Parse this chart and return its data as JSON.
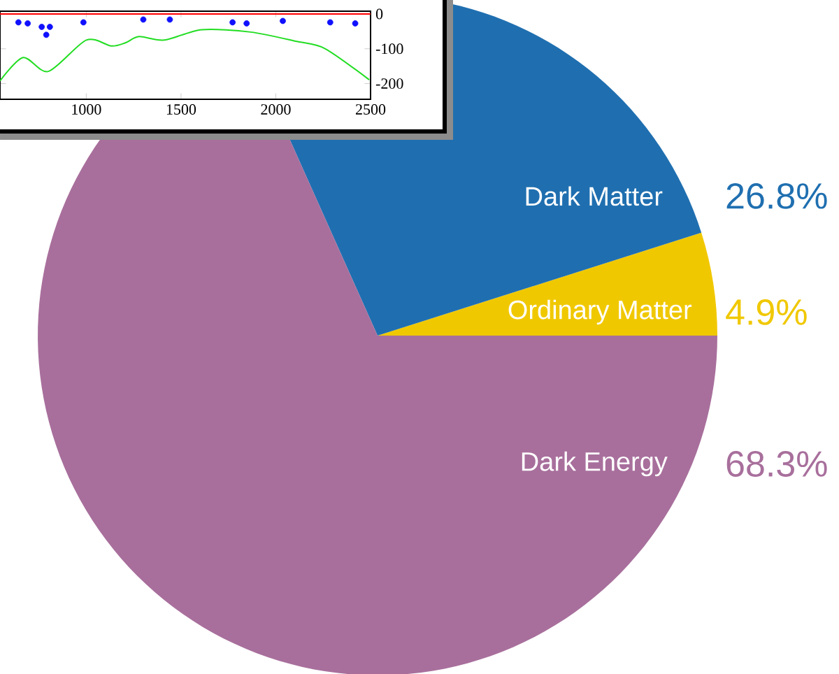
{
  "chart_data": [
    {
      "type": "pie",
      "categories": [
        "Ordinary Matter",
        "Dark Matter",
        "Dark Energy"
      ],
      "values": [
        4.9,
        26.8,
        68.3
      ],
      "colors": [
        "#f0c800",
        "#1f6fb0",
        "#a86f9c"
      ],
      "value_labels": [
        "4.9%",
        "26.8%",
        "68.3%"
      ]
    },
    {
      "type": "line",
      "xlim": [
        545,
        2500
      ],
      "ylim": [
        -245,
        8
      ],
      "xticks": [
        1000,
        1500,
        2000,
        2500
      ],
      "yticks": [
        0,
        -100,
        -200
      ],
      "ref_lines": [
        {
          "axis": "y",
          "value": 0,
          "color": "#ff0000"
        }
      ],
      "series": [
        {
          "type": "scatter",
          "color": "#1010ff",
          "x": [
            642,
            691,
            765,
            789,
            808,
            985,
            1301,
            1441,
            1772,
            1846,
            2037,
            2287,
            2419
          ],
          "values": [
            -24,
            -27,
            -37,
            -60,
            -37,
            -24,
            -16,
            -16,
            -24,
            -27,
            -20,
            -24,
            -27
          ]
        },
        {
          "type": "line",
          "color": "#22dd22",
          "x": [
            545,
            667,
            800,
            1000,
            1132,
            1206,
            1279,
            1412,
            1610,
            1868,
            2111,
            2258,
            2493
          ],
          "values": [
            -192,
            -125,
            -165,
            -75,
            -92,
            -83,
            -65,
            -75,
            -45,
            -52,
            -79,
            -99,
            -189
          ]
        }
      ]
    }
  ]
}
